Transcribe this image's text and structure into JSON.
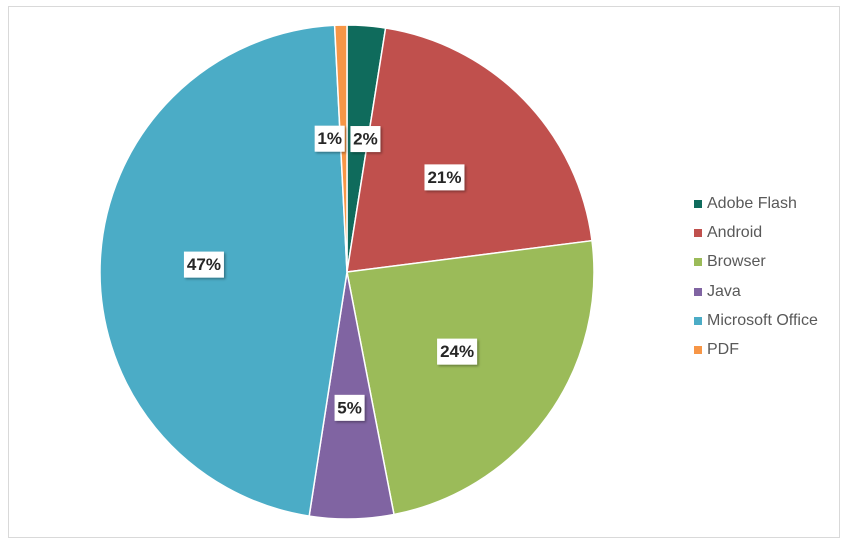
{
  "chart_data": {
    "type": "pie",
    "title": "",
    "legend_position": "right",
    "data_labels": "percent",
    "categories": [
      "Adobe Flash",
      "Android",
      "Browser",
      "Java",
      "Microsoft Office",
      "PDF"
    ],
    "values": [
      2.5,
      20.5,
      24,
      5.5,
      46.8,
      0.8
    ],
    "labels": [
      "2%",
      "21%",
      "24%",
      "5%",
      "47%",
      "1%"
    ],
    "colors": [
      "#0f6b5c",
      "#c0504d",
      "#9bbb59",
      "#8064a2",
      "#4bacc6",
      "#f79646"
    ]
  }
}
